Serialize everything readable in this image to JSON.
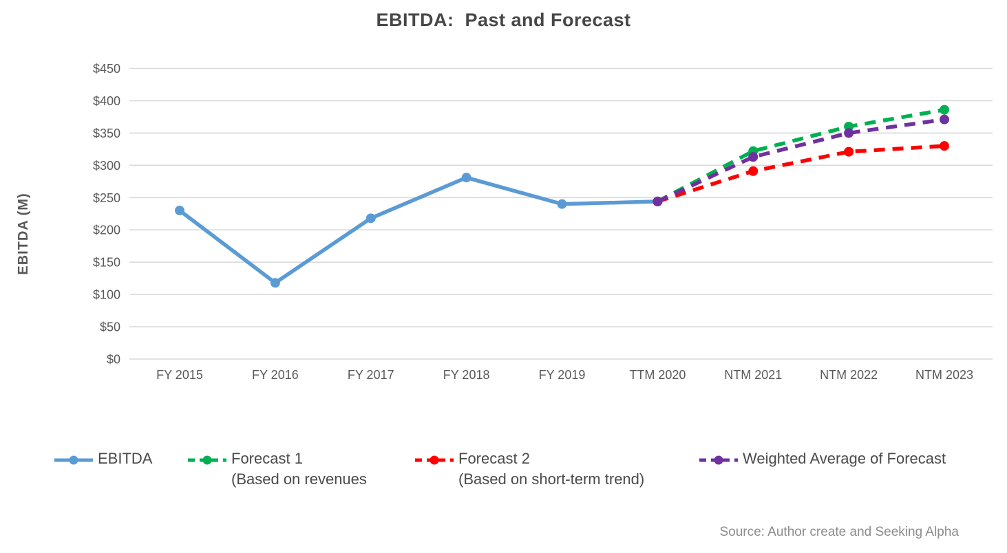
{
  "chart_data": {
    "type": "line",
    "title": "EBITDA:  Past and Forecast",
    "ylabel": "EBITDA (M)",
    "xlabel": "",
    "categories": [
      "FY 2015",
      "FY 2016",
      "FY 2017",
      "FY 2018",
      "FY 2019",
      "TTM 2020",
      "NTM 2021",
      "NTM 2022",
      "NTM 2023"
    ],
    "series": [
      {
        "id": "ebitda",
        "name": "EBITDA",
        "color": "#5B9BD5",
        "dashed": false,
        "values": [
          230,
          118,
          218,
          281,
          240,
          244,
          null,
          null,
          null
        ]
      },
      {
        "id": "forecast-1",
        "name": "Forecast 1 (Based on revenues",
        "color": "#00B050",
        "dashed": true,
        "values": [
          null,
          null,
          null,
          null,
          null,
          244,
          322,
          360,
          386
        ]
      },
      {
        "id": "forecast-2",
        "name": "Forecast 2 (Based on short-term trend)",
        "color": "#FF0000",
        "dashed": true,
        "values": [
          null,
          null,
          null,
          null,
          null,
          244,
          291,
          321,
          330
        ]
      },
      {
        "id": "weighted-average",
        "name": "Weighted Average of Forecast",
        "color": "#7030A0",
        "dashed": true,
        "values": [
          null,
          null,
          null,
          null,
          null,
          244,
          313,
          350,
          371
        ]
      }
    ],
    "ylim": [
      0,
      450
    ],
    "y_ticks": [
      "$0",
      "$50",
      "$100",
      "$150",
      "$200",
      "$250",
      "$300",
      "$350",
      "$400",
      "$450"
    ],
    "grid": true,
    "grid_color": "#D9D9D9",
    "legend_position": "bottom"
  },
  "legend": {
    "items": [
      {
        "label": "EBITDA",
        "label2": "",
        "color": "#5B9BD5"
      },
      {
        "label": "Forecast 1",
        "label2": "(Based on revenues",
        "color": "#00B050"
      },
      {
        "label": "Forecast 2",
        "label2": "(Based on short-term trend)",
        "color": "#FF0000"
      },
      {
        "label": "Weighted Average of Forecast",
        "label2": "",
        "color": "#7030A0"
      }
    ]
  },
  "source": "Source: Author create and Seeking Alpha"
}
